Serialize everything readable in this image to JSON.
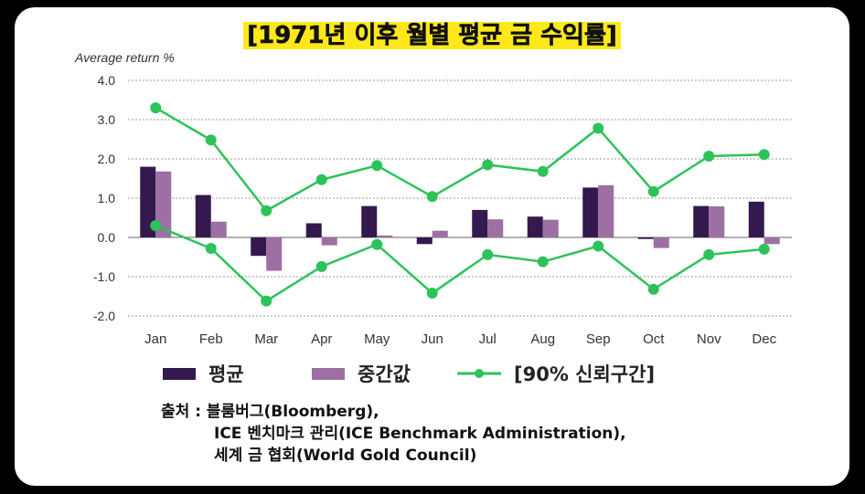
{
  "title": "[1971년 이후 월별 평균 금 수익률]",
  "source": {
    "label": "출처 :",
    "lines": [
      "블룸버그(Bloomberg),",
      "ICE 벤치마크 관리(ICE Benchmark Administration),",
      "세계 금 협회(World Gold Council)"
    ]
  },
  "colors": {
    "mean": "#34194f",
    "median": "#9e6fa2",
    "ci": "#2ec25a",
    "highlight": "#ffe81a"
  },
  "chart_data": {
    "type": "bar",
    "title": "[1971년 이후 월별 평균 금 수익률]",
    "ylabel": "Average return %",
    "ylim": [
      -2.0,
      4.0
    ],
    "yticks": [
      "4.0",
      "3.0",
      "2.0",
      "1.0",
      "0.0",
      "-1.0",
      "-2.0"
    ],
    "categories": [
      "Jan",
      "Feb",
      "Mar",
      "Apr",
      "May",
      "Jun",
      "Jul",
      "Aug",
      "Sep",
      "Oct",
      "Nov",
      "Dec"
    ],
    "series": [
      {
        "name": "평균",
        "kind": "bar",
        "values": [
          1.8,
          1.08,
          -0.47,
          0.36,
          0.8,
          -0.17,
          0.7,
          0.53,
          1.27,
          -0.04,
          0.8,
          0.91
        ]
      },
      {
        "name": "중간값",
        "kind": "bar",
        "values": [
          1.68,
          0.4,
          -0.85,
          -0.2,
          0.05,
          0.17,
          0.46,
          0.45,
          1.33,
          -0.27,
          0.79,
          -0.17
        ]
      },
      {
        "name": "[90% 신뢰구간]",
        "kind": "line",
        "upper": [
          3.3,
          2.48,
          0.68,
          1.47,
          1.83,
          1.04,
          1.85,
          1.68,
          2.78,
          1.17,
          2.07,
          2.11
        ],
        "lower": [
          0.3,
          -0.28,
          -1.62,
          -0.74,
          -0.18,
          -1.42,
          -0.44,
          -0.62,
          -0.22,
          -1.32,
          -0.44,
          -0.3
        ]
      }
    ],
    "grid": true,
    "legend": "bottom"
  }
}
